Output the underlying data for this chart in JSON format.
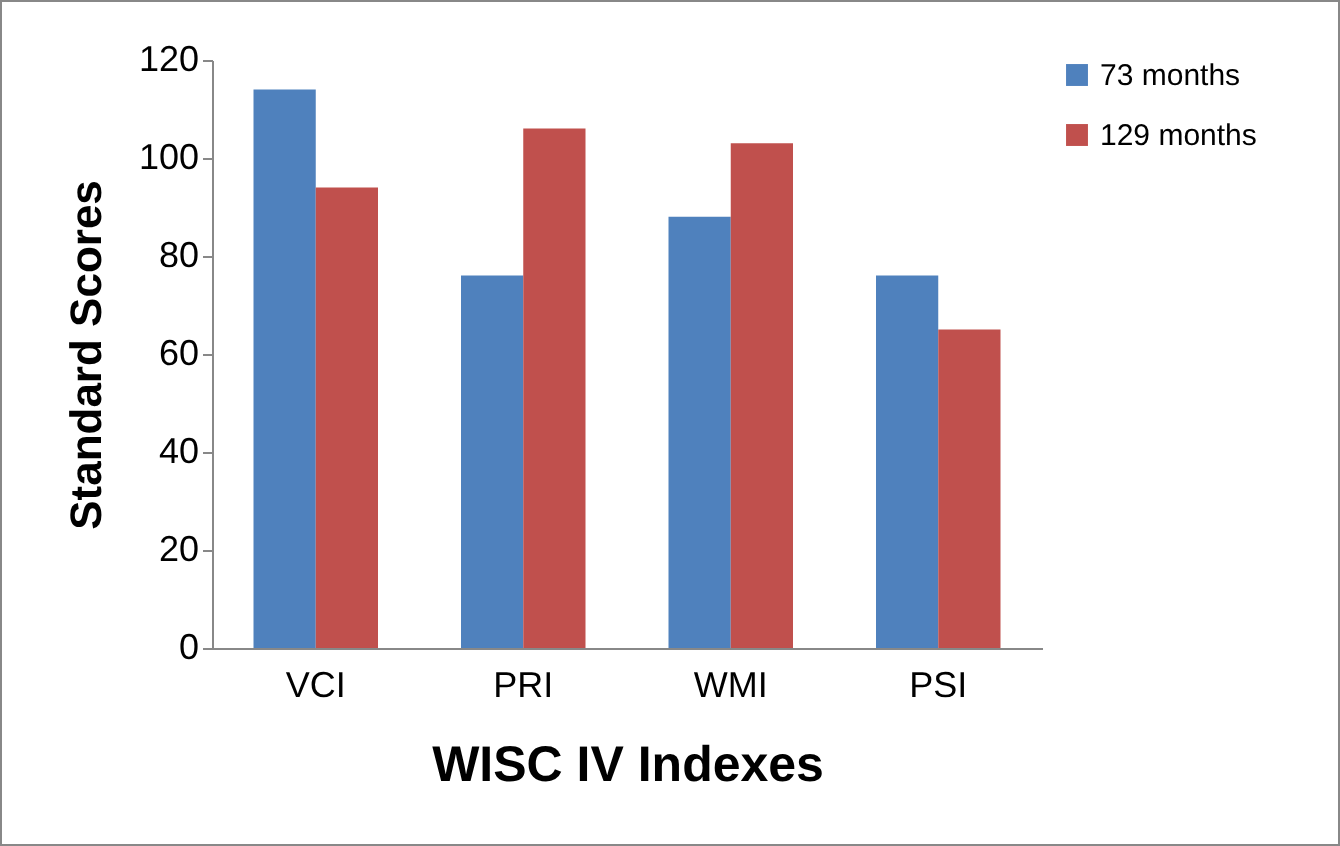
{
  "chart_data": {
    "type": "bar",
    "xlabel": "WISC IV Indexes",
    "ylabel": "Standard Scores",
    "categories": [
      "VCI",
      "PRI",
      "WMI",
      "PSI"
    ],
    "series": [
      {
        "name": "73 months",
        "color": "#4f81bd",
        "values": [
          114,
          76,
          88,
          76
        ]
      },
      {
        "name": "129 months",
        "color": "#c0504d",
        "values": [
          94,
          106,
          103,
          65
        ]
      }
    ],
    "ylim": [
      0,
      120
    ],
    "yticks": [
      0,
      20,
      40,
      60,
      80,
      100,
      120
    ],
    "grid": false,
    "legend": "top right"
  }
}
